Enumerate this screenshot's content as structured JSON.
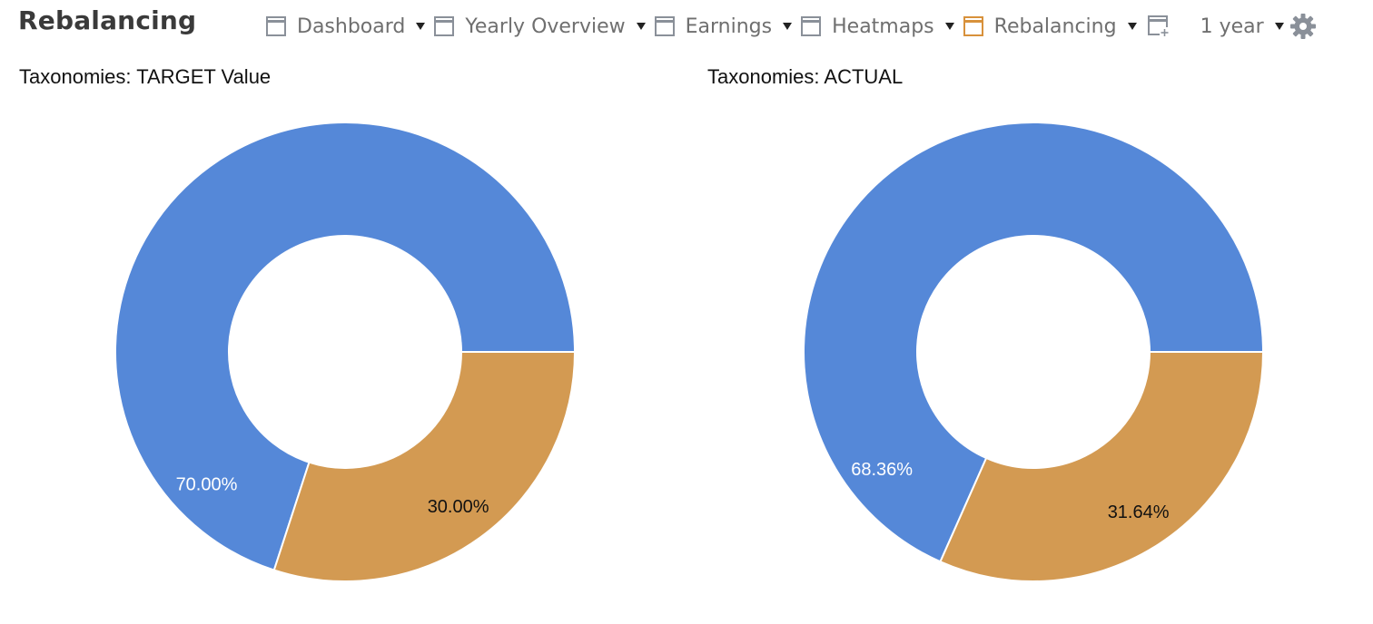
{
  "header": {
    "title": "Rebalancing",
    "tabs": [
      {
        "label": "Dashboard",
        "active": false
      },
      {
        "label": "Yearly Overview",
        "active": false
      },
      {
        "label": "Earnings",
        "active": false
      },
      {
        "label": "Heatmaps",
        "active": false
      },
      {
        "label": "Rebalancing",
        "active": true
      }
    ],
    "period": "1 year",
    "icons": {
      "tab": "window-icon",
      "add": "add-tab-icon",
      "settings": "gear-icon"
    }
  },
  "colors": {
    "inactive_tab_icon": "#8a9099",
    "active_tab_icon": "#d8913b",
    "series_blue": "#5588d8",
    "series_orange": "#d39a52"
  },
  "chart_data": [
    {
      "type": "pie",
      "title": "Taxonomies: TARGET Value",
      "donut": true,
      "slices": [
        {
          "label": "70.00%",
          "value": 70.0,
          "color": "#5588d8",
          "label_color": "#ffffff"
        },
        {
          "label": "30.00%",
          "value": 30.0,
          "color": "#d39a52",
          "label_color": "#111111"
        }
      ]
    },
    {
      "type": "pie",
      "title": "Taxonomies: ACTUAL",
      "donut": true,
      "slices": [
        {
          "label": "68.36%",
          "value": 68.36,
          "color": "#5588d8",
          "label_color": "#ffffff"
        },
        {
          "label": "31.64%",
          "value": 31.64,
          "color": "#d39a52",
          "label_color": "#111111"
        }
      ]
    }
  ]
}
